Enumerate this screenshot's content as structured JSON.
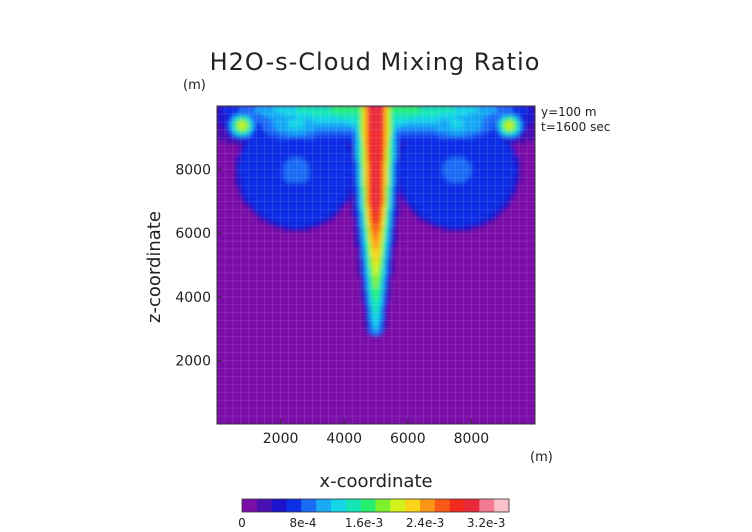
{
  "chart_data": {
    "type": "heatmap",
    "title": "H2O-s-Cloud Mixing Ratio",
    "xlabel": "x-coordinate",
    "ylabel": "z-coordinate",
    "x_unit": "(m)",
    "y_unit": "(m)",
    "annotations": [
      "y=100 m",
      "t=1600 sec"
    ],
    "xlim": [
      0,
      10000
    ],
    "ylim": [
      0,
      10000
    ],
    "xticks": [
      2000,
      4000,
      6000,
      8000
    ],
    "yticks": [
      2000,
      4000,
      6000,
      8000
    ],
    "grid": true,
    "colorbar": {
      "ticks": [
        "0",
        "8e-4",
        "1.6e-3",
        "2.4e-3",
        "3.2e-3"
      ],
      "tick_values": [
        0,
        0.0008,
        0.0016,
        0.0024,
        0.0032
      ],
      "range": [
        0,
        0.0035
      ],
      "colors": [
        "#7b0ea8",
        "#4a0fb0",
        "#1b12cc",
        "#0d2fe6",
        "#1a6cf5",
        "#19a9f5",
        "#14d6e8",
        "#13e6b4",
        "#27f070",
        "#7df22c",
        "#d2f21a",
        "#fbd41a",
        "#fb9517",
        "#f95a18",
        "#f22b1e",
        "#e82a3c",
        "#f27a92",
        "#fbc0ca"
      ]
    },
    "fields": {
      "background_value": 0,
      "central_column": {
        "x": 5000,
        "z_bottom": 2900,
        "z_top": 9850,
        "peak_value": 0.0031
      },
      "top_layer": {
        "x_range": [
          0,
          10000
        ],
        "z_range": [
          8700,
          9850
        ],
        "peak_value": 0.0022
      },
      "cells": [
        {
          "x_range": [
            600,
            4400
          ],
          "z_range": [
            6100,
            9850
          ],
          "core_x": 800,
          "core_z": 9400,
          "core_value": 0.0022
        },
        {
          "x_range": [
            5600,
            9500
          ],
          "z_range": [
            6100,
            9850
          ],
          "core_x": 9200,
          "core_z": 9400,
          "core_value": 0.0022
        }
      ]
    }
  }
}
